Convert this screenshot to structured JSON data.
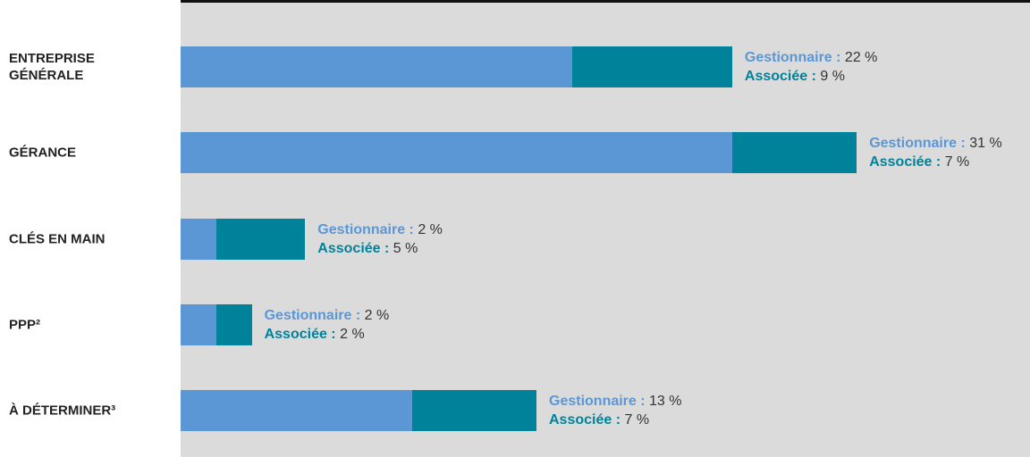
{
  "chart_data": {
    "type": "stacked-bar-horizontal",
    "categories": [
      "ENTREPRISE GÉNÉRALE",
      "GÉRANCE",
      "CLÉS EN MAIN",
      "PPP²",
      "À DÉTERMINER³"
    ],
    "series": [
      {
        "name": "Gestionnaire :",
        "color": "#5b97d5",
        "values": [
          22,
          31,
          2,
          2,
          13
        ],
        "value_labels": [
          "22 %",
          "31 %",
          "2 %",
          "2 %",
          "13 %"
        ]
      },
      {
        "name": "Associée :",
        "color": "#00839a",
        "values": [
          9,
          7,
          5,
          2,
          7
        ],
        "value_labels": [
          "9 %",
          "7 %",
          "5 %",
          "2 %",
          "7 %"
        ]
      }
    ]
  }
}
